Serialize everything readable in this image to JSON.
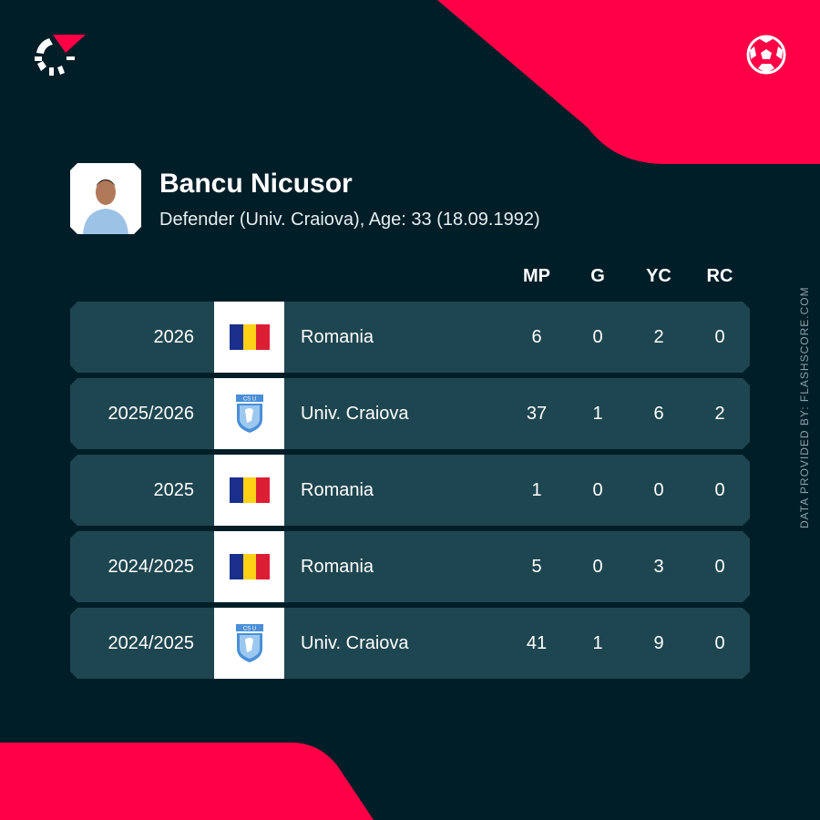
{
  "colors": {
    "background": "#001e28",
    "accent": "#ff0046",
    "row": "#1e4650"
  },
  "player": {
    "name": "Bancu Nicusor",
    "details": "Defender (Univ. Craiova), Age: 33 (18.09.1992)"
  },
  "columns": [
    "MP",
    "G",
    "YC",
    "RC"
  ],
  "rows": [
    {
      "season": "2026",
      "team": "Romania",
      "icon": "romania-flag",
      "mp": "6",
      "g": "0",
      "yc": "2",
      "rc": "0"
    },
    {
      "season": "2025/2026",
      "team": "Univ. Craiova",
      "icon": "craiova-crest",
      "mp": "37",
      "g": "1",
      "yc": "6",
      "rc": "2"
    },
    {
      "season": "2025",
      "team": "Romania",
      "icon": "romania-flag",
      "mp": "1",
      "g": "0",
      "yc": "0",
      "rc": "0"
    },
    {
      "season": "2024/2025",
      "team": "Romania",
      "icon": "romania-flag",
      "mp": "5",
      "g": "0",
      "yc": "3",
      "rc": "0"
    },
    {
      "season": "2024/2025",
      "team": "Univ. Craiova",
      "icon": "craiova-crest",
      "mp": "41",
      "g": "1",
      "yc": "9",
      "rc": "0"
    }
  ],
  "credit": "DATA PROVIDED BY: FLASHSCORE.COM"
}
